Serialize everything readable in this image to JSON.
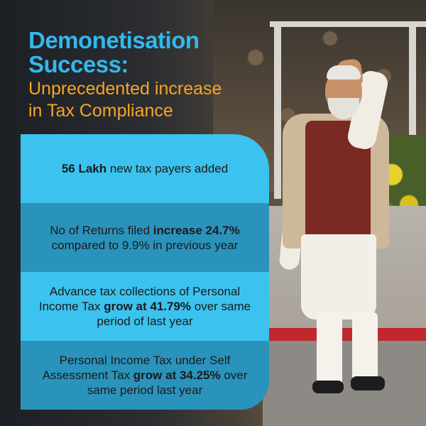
{
  "title": {
    "line1": "Demonetisation",
    "line2": "Success:",
    "subtitle_line1": "Unprecedented increase",
    "subtitle_line2": "in Tax Compliance"
  },
  "facts": [
    {
      "bold": "56 Lakh",
      "text": " new tax payers added"
    },
    {
      "pre": "No of Returns filed ",
      "bold": "increase 24.7%",
      "post": " compared to 9.9% in previous year"
    },
    {
      "pre": "Advance tax collections of Personal Income Tax ",
      "bold": "grow at  41.79%",
      "post": " over same period of last year"
    },
    {
      "pre": "Personal Income Tax under Self Assessment Tax ",
      "bold": "grow at 34.25%",
      "post": " over same period last year"
    }
  ],
  "colors": {
    "title_blue": "#32b8ec",
    "subtitle_orange": "#f5a623",
    "box_light": "#3cc2ee",
    "box_dark": "#2a93bc"
  }
}
